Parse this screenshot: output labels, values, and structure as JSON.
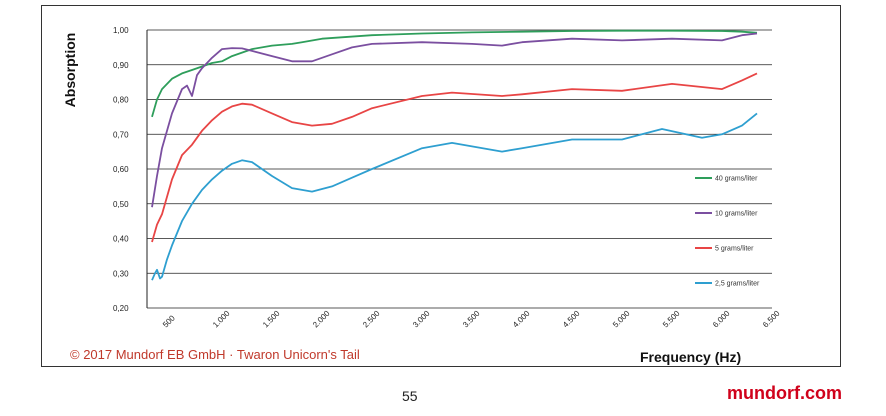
{
  "chart_data": {
    "type": "line",
    "title": "",
    "xlabel": "Frequency (Hz)",
    "ylabel": "Absorption",
    "xlim": [
      250,
      6500
    ],
    "ylim": [
      0.2,
      1.0
    ],
    "x_ticks": [
      "500",
      "1.000",
      "1.500",
      "2.000",
      "2.500",
      "3.000",
      "3.500",
      "4.000",
      "4.500",
      "5.000",
      "5.500",
      "6.000",
      "6.500"
    ],
    "x_tick_values": [
      500,
      1000,
      1500,
      2000,
      2500,
      3000,
      3500,
      4000,
      4500,
      5000,
      5500,
      6000,
      6500
    ],
    "y_ticks": [
      "0,20",
      "0,30",
      "0,40",
      "0,50",
      "0,60",
      "0,70",
      "0,80",
      "0,90",
      "1,00"
    ],
    "y_tick_values": [
      0.2,
      0.3,
      0.4,
      0.5,
      0.6,
      0.7,
      0.8,
      0.9,
      1.0
    ],
    "grid": "horizontal",
    "legend_position": "right",
    "series": [
      {
        "name": "40 grams/liter",
        "color": "#2e9e5b",
        "x": [
          300,
          350,
          400,
          500,
          600,
          700,
          800,
          900,
          1000,
          1100,
          1200,
          1300,
          1500,
          1700,
          1800,
          2000,
          2500,
          3000,
          3500,
          4000,
          4500,
          5000,
          5500,
          6000,
          6200,
          6350
        ],
        "y": [
          0.75,
          0.8,
          0.83,
          0.86,
          0.875,
          0.885,
          0.895,
          0.905,
          0.91,
          0.925,
          0.935,
          0.945,
          0.955,
          0.96,
          0.965,
          0.975,
          0.985,
          0.99,
          0.993,
          0.995,
          0.997,
          0.998,
          0.998,
          0.997,
          0.995,
          0.992
        ]
      },
      {
        "name": "10 grams/liter",
        "color": "#7b4fa0",
        "x": [
          300,
          350,
          400,
          500,
          600,
          650,
          700,
          750,
          800,
          900,
          1000,
          1100,
          1200,
          1300,
          1500,
          1700,
          1900,
          2100,
          2300,
          2500,
          3000,
          3500,
          3800,
          4000,
          4500,
          5000,
          5500,
          6000,
          6200,
          6350
        ],
        "y": [
          0.49,
          0.58,
          0.66,
          0.76,
          0.83,
          0.84,
          0.81,
          0.87,
          0.89,
          0.92,
          0.945,
          0.948,
          0.947,
          0.94,
          0.925,
          0.91,
          0.91,
          0.93,
          0.95,
          0.96,
          0.965,
          0.96,
          0.955,
          0.965,
          0.975,
          0.97,
          0.975,
          0.97,
          0.985,
          0.99
        ]
      },
      {
        "name": "5 grams/liter",
        "color": "#e84545",
        "x": [
          300,
          350,
          400,
          500,
          600,
          700,
          800,
          900,
          1000,
          1100,
          1200,
          1300,
          1500,
          1700,
          1900,
          2100,
          2300,
          2500,
          3000,
          3300,
          3800,
          4000,
          4500,
          5000,
          5500,
          6000,
          6200,
          6350
        ],
        "y": [
          0.39,
          0.44,
          0.47,
          0.57,
          0.64,
          0.67,
          0.71,
          0.74,
          0.765,
          0.78,
          0.788,
          0.785,
          0.76,
          0.735,
          0.725,
          0.73,
          0.75,
          0.775,
          0.81,
          0.82,
          0.81,
          0.815,
          0.83,
          0.825,
          0.845,
          0.83,
          0.855,
          0.875
        ]
      },
      {
        "name": "2,5 grams/liter",
        "color": "#2e9fd0",
        "x": [
          300,
          330,
          350,
          380,
          400,
          450,
          500,
          600,
          700,
          800,
          900,
          1000,
          1100,
          1200,
          1300,
          1500,
          1700,
          1900,
          2100,
          2300,
          2500,
          3000,
          3300,
          3800,
          4000,
          4500,
          5000,
          5400,
          5800,
          6000,
          6200,
          6350
        ],
        "y": [
          0.28,
          0.3,
          0.31,
          0.285,
          0.29,
          0.34,
          0.38,
          0.45,
          0.5,
          0.54,
          0.57,
          0.595,
          0.615,
          0.625,
          0.62,
          0.58,
          0.545,
          0.535,
          0.55,
          0.575,
          0.6,
          0.66,
          0.675,
          0.65,
          0.66,
          0.685,
          0.685,
          0.715,
          0.69,
          0.7,
          0.725,
          0.76
        ]
      }
    ]
  },
  "footer": {
    "copyright": "© 2017 Mundorf EB GmbH · Twaron Unicorn's Tail",
    "page_number": "55",
    "brand": "mundorf.com"
  }
}
